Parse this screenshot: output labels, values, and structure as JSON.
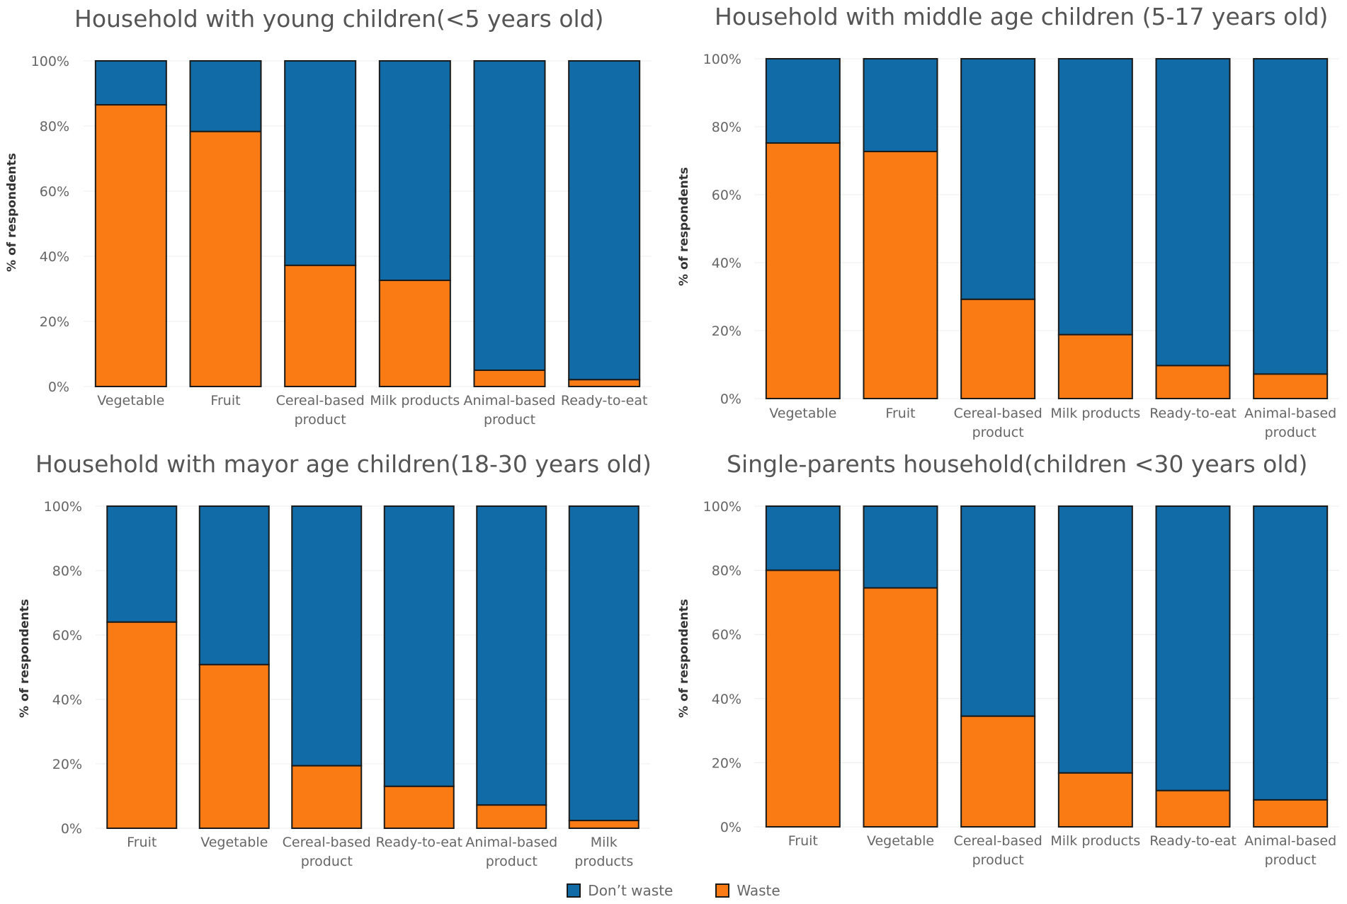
{
  "chart_data": [
    {
      "type": "bar",
      "stacked": true,
      "title": "Household with young children(<5 years old)",
      "ylabel": "% of respondents",
      "xlabel": "",
      "ylim": [
        0,
        100
      ],
      "yticks": [
        "0%",
        "20%",
        "40%",
        "60%",
        "80%",
        "100%"
      ],
      "categories": [
        [
          "Vegetable"
        ],
        [
          "Fruit"
        ],
        [
          "Cereal-based",
          "product"
        ],
        [
          "Milk products"
        ],
        [
          "Animal-based",
          "product"
        ],
        [
          "Ready-to-eat"
        ]
      ],
      "series": [
        {
          "name": "Waste",
          "values": [
            86.5,
            78.3,
            37.2,
            32.6,
            5.0,
            2.1
          ]
        },
        {
          "name": "Don't waste",
          "values": [
            13.5,
            21.7,
            62.8,
            67.4,
            95.0,
            97.9
          ]
        }
      ]
    },
    {
      "type": "bar",
      "stacked": true,
      "title": "Household with middle age children (5-17 years old)",
      "ylabel": "% of respondents",
      "xlabel": "",
      "ylim": [
        0,
        100
      ],
      "yticks": [
        "0%",
        "20%",
        "40%",
        "60%",
        "80%",
        "100%"
      ],
      "categories": [
        [
          "Vegetable"
        ],
        [
          "Fruit"
        ],
        [
          "Cereal-based",
          "product"
        ],
        [
          "Milk products"
        ],
        [
          "Ready-to-eat"
        ],
        [
          "Animal-based",
          "product"
        ]
      ],
      "series": [
        {
          "name": "Waste",
          "values": [
            75.2,
            72.7,
            29.2,
            18.8,
            9.7,
            7.2
          ]
        },
        {
          "name": "Don't waste",
          "values": [
            24.8,
            27.3,
            70.8,
            81.2,
            90.3,
            92.8
          ]
        }
      ]
    },
    {
      "type": "bar",
      "stacked": true,
      "title": "Household with mayor age children(18-30 years old)",
      "ylabel": "% of respondents",
      "xlabel": "",
      "ylim": [
        0,
        100
      ],
      "yticks": [
        "0%",
        "20%",
        "40%",
        "60%",
        "80%",
        "100%"
      ],
      "categories": [
        [
          "Fruit"
        ],
        [
          "Vegetable"
        ],
        [
          "Cereal-based",
          "product"
        ],
        [
          "Ready-to-eat"
        ],
        [
          "Animal-based",
          "product"
        ],
        [
          "Milk",
          "products"
        ]
      ],
      "series": [
        {
          "name": "Waste",
          "values": [
            64.0,
            50.8,
            19.4,
            13.0,
            7.2,
            2.4
          ]
        },
        {
          "name": "Don't waste",
          "values": [
            36.0,
            49.2,
            80.6,
            87.0,
            92.8,
            97.6
          ]
        }
      ]
    },
    {
      "type": "bar",
      "stacked": true,
      "title": "Single-parents household(children <30 years old)",
      "ylabel": "% of respondents",
      "xlabel": "",
      "ylim": [
        0,
        100
      ],
      "yticks": [
        "0%",
        "20%",
        "40%",
        "60%",
        "80%",
        "100%"
      ],
      "categories": [
        [
          "Fruit"
        ],
        [
          "Vegetable"
        ],
        [
          "Cereal-based",
          "product"
        ],
        [
          "Milk products"
        ],
        [
          "Ready-to-eat"
        ],
        [
          "Animal-based",
          "product"
        ]
      ],
      "series": [
        {
          "name": "Waste",
          "values": [
            80.0,
            74.5,
            34.5,
            16.8,
            11.3,
            8.4
          ]
        },
        {
          "name": "Don't waste",
          "values": [
            20.0,
            25.5,
            65.5,
            83.2,
            88.7,
            91.6
          ]
        }
      ]
    }
  ],
  "legend": [
    {
      "label": "Don’t waste",
      "color": "#106ba7"
    },
    {
      "label": "Waste",
      "color": "#fa7b13"
    }
  ],
  "colors": {
    "waste": "#fa7b13",
    "dont_waste": "#106ba7"
  }
}
